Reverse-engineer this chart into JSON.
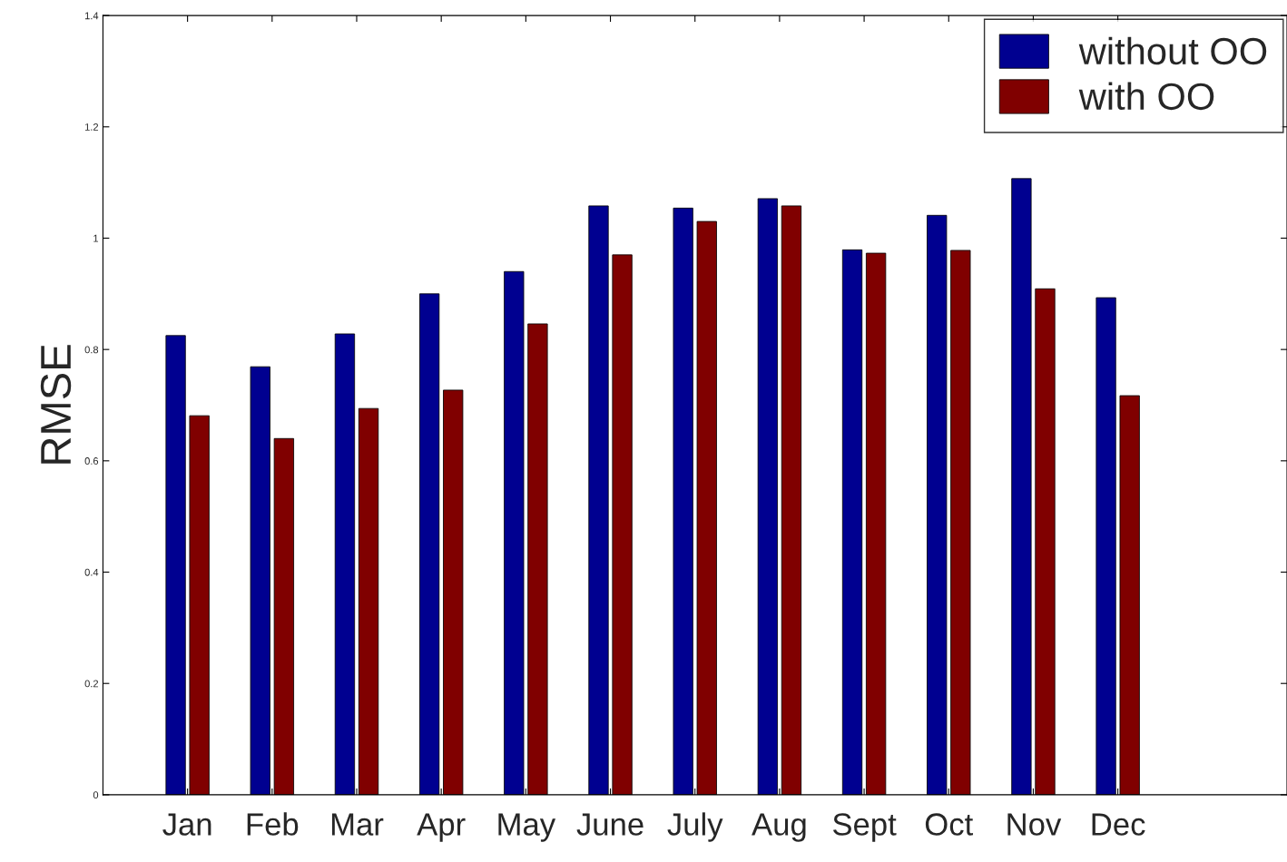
{
  "chart_data": {
    "type": "bar",
    "ylabel": "RMSE",
    "categories": [
      "Jan",
      "Feb",
      "Mar",
      "Apr",
      "May",
      "June",
      "July",
      "Aug",
      "Sept",
      "Oct",
      "Nov",
      "Dec"
    ],
    "series": [
      {
        "name": "without OO",
        "color": "#000090",
        "values": [
          0.825,
          0.769,
          0.828,
          0.9,
          0.94,
          1.058,
          1.054,
          1.071,
          0.979,
          1.041,
          1.107,
          0.893
        ]
      },
      {
        "name": "with OO",
        "color": "#800000",
        "values": [
          0.681,
          0.64,
          0.694,
          0.727,
          0.846,
          0.97,
          1.03,
          1.058,
          0.973,
          0.978,
          0.909,
          0.717
        ]
      }
    ],
    "ylim": [
      0,
      1.4
    ],
    "yticks": [
      0,
      0.2,
      0.4,
      0.6,
      0.8,
      1,
      1.2,
      1.4
    ],
    "grid": false,
    "legend": "top right"
  }
}
